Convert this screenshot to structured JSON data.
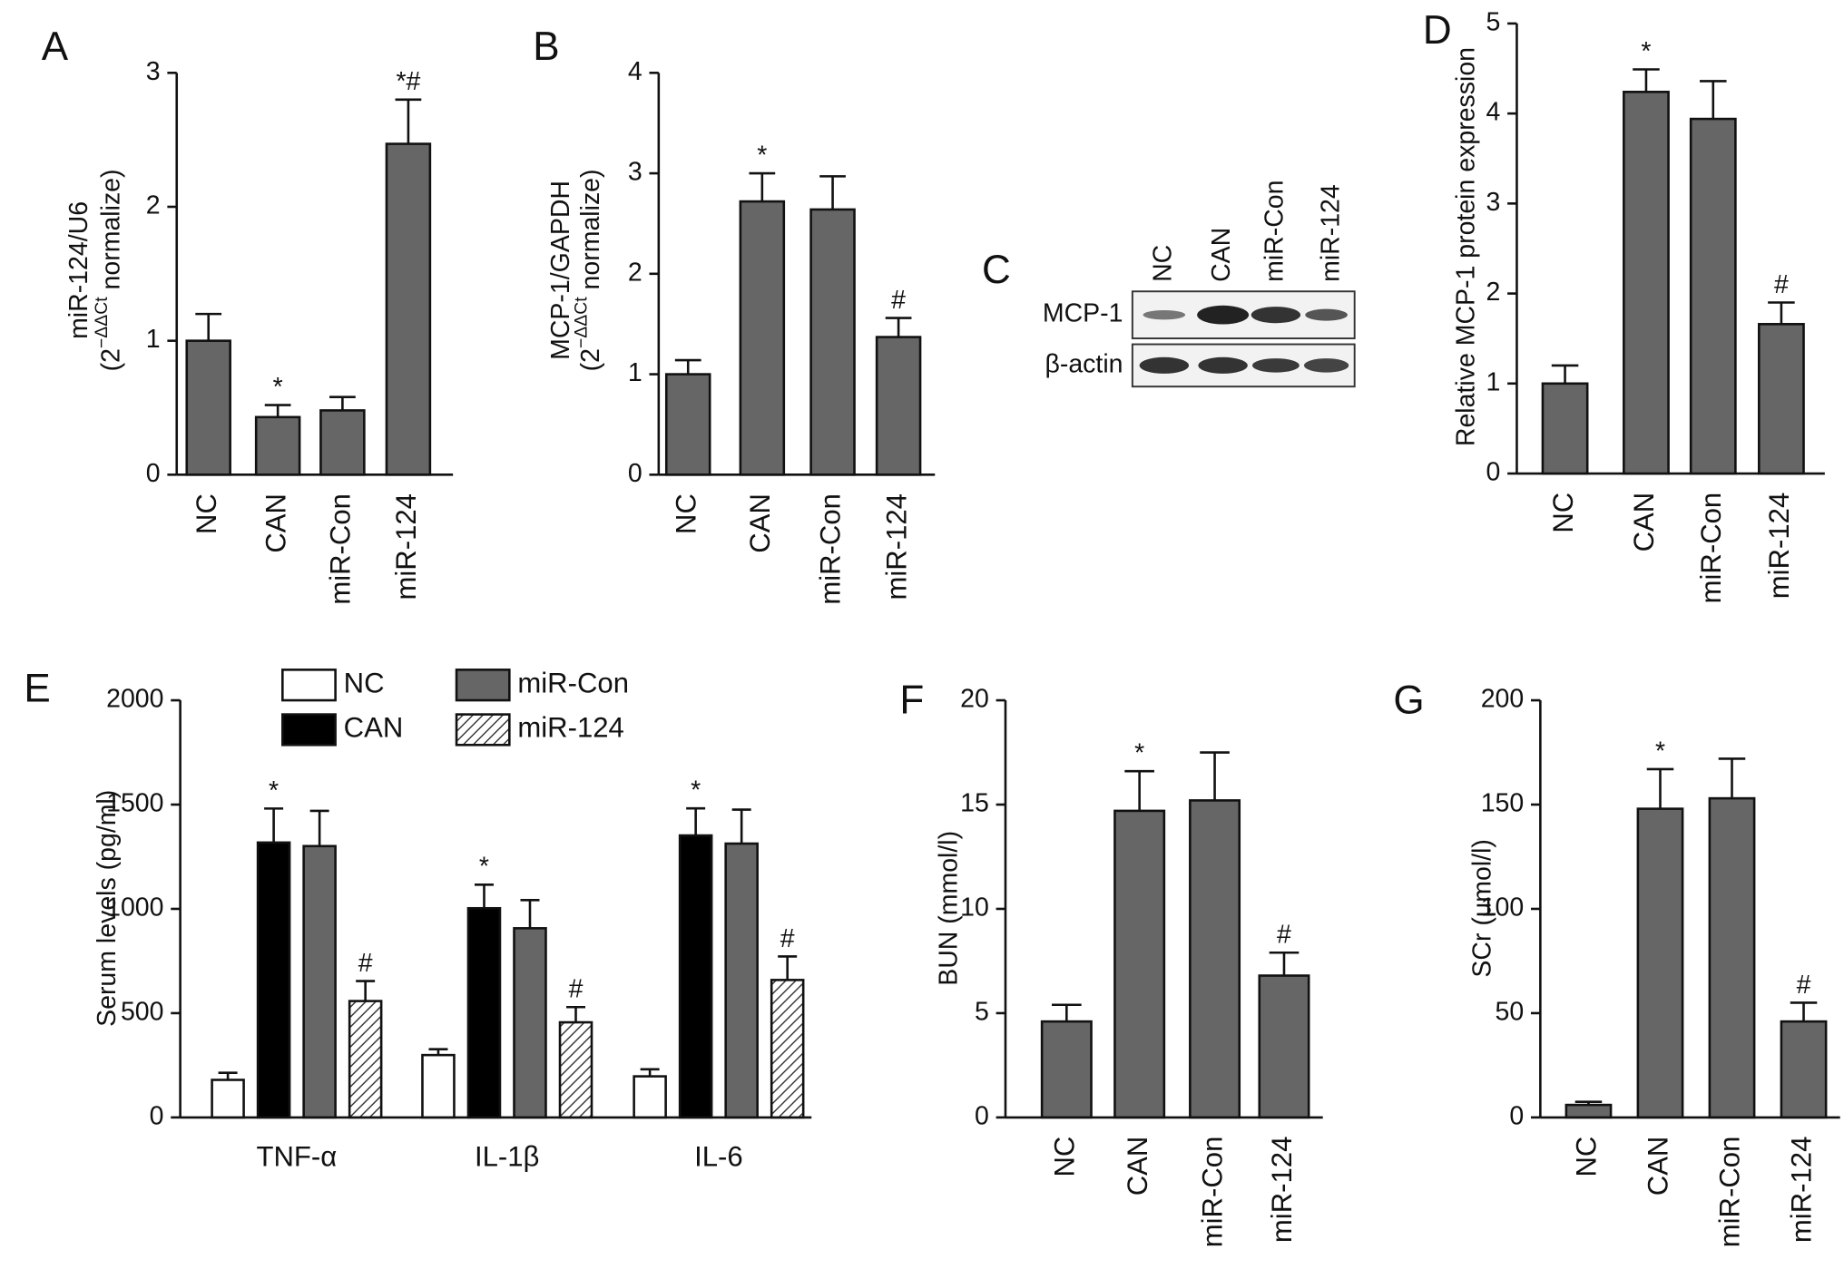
{
  "chart_data": [
    {
      "type": "bar",
      "panel_label": "A",
      "ylabel": "miR-124/U6",
      "ylabel2": {
        "base": "(2",
        "sup": "−ΔΔCt",
        "rest": " normalize)"
      },
      "categories": [
        "NC",
        "CAN",
        "miR-Con",
        "miR-124"
      ],
      "values": [
        1.0,
        0.43,
        0.48,
        2.47
      ],
      "errors": [
        0.2,
        0.09,
        0.1,
        0.33
      ],
      "annotations": [
        null,
        "*",
        null,
        "*#"
      ],
      "color": "#666666",
      "ylim": [
        0,
        3
      ],
      "yticks": [
        0,
        1,
        2,
        3
      ]
    },
    {
      "type": "bar",
      "panel_label": "B",
      "ylabel": "MCP-1/GAPDH",
      "ylabel2": {
        "base": "(2",
        "sup": "−ΔΔCt",
        "rest": " normalize)"
      },
      "categories": [
        "NC",
        "CAN",
        "miR-Con",
        "miR-124"
      ],
      "values": [
        1.0,
        2.72,
        2.64,
        1.37
      ],
      "errors": [
        0.14,
        0.28,
        0.33,
        0.19
      ],
      "annotations": [
        null,
        "*",
        null,
        "#"
      ],
      "color": "#666666",
      "ylim": [
        0,
        4
      ],
      "yticks": [
        0,
        1,
        2,
        3,
        4
      ]
    },
    {
      "type": "blot",
      "panel_label": "C",
      "lanes": [
        "NC",
        "CAN",
        "miR-Con",
        "miR-124"
      ],
      "rows": [
        "MCP-1",
        "β-actin"
      ]
    },
    {
      "type": "bar",
      "panel_label": "D",
      "ylabel": "Relative MCP-1 protein expression",
      "categories": [
        "NC",
        "CAN",
        "miR-Con",
        "miR-124"
      ],
      "values": [
        1.0,
        4.24,
        3.94,
        1.66
      ],
      "errors": [
        0.2,
        0.25,
        0.42,
        0.24
      ],
      "annotations": [
        null,
        "*",
        null,
        "#"
      ],
      "color": "#666666",
      "ylim": [
        0,
        5
      ],
      "yticks": [
        0,
        1,
        2,
        3,
        4,
        5
      ]
    },
    {
      "type": "grouped_bar",
      "panel_label": "E",
      "ylabel": "Serum levels (pg/ml)",
      "categories": [
        "TNF-α",
        "IL-1β",
        "IL-6"
      ],
      "series": [
        {
          "name": "NC",
          "color": "#ffffff",
          "values": [
            180,
            299,
            197
          ],
          "errors": [
            34,
            28,
            34
          ],
          "annotations": [
            null,
            null,
            null
          ]
        },
        {
          "name": "CAN",
          "color": "#000000",
          "values": [
            1318,
            1003,
            1352
          ],
          "errors": [
            163,
            113,
            130
          ],
          "annotations": [
            "*",
            "*",
            "*"
          ]
        },
        {
          "name": "miR-Con",
          "color": "#666666",
          "values": [
            1301,
            907,
            1313
          ],
          "errors": [
            169,
            135,
            163
          ],
          "annotations": [
            null,
            null,
            null
          ]
        },
        {
          "name": "miR-124",
          "color": "hatch",
          "values": [
            558,
            456,
            659
          ],
          "errors": [
            96,
            73,
            113
          ],
          "annotations": [
            "#",
            "#",
            "#"
          ]
        }
      ],
      "ylim": [
        0,
        2000
      ],
      "yticks": [
        0,
        500,
        1000,
        1500,
        2000
      ]
    },
    {
      "type": "bar",
      "panel_label": "F",
      "ylabel": "BUN (mmol/l)",
      "categories": [
        "NC",
        "CAN",
        "miR-Con",
        "miR-124"
      ],
      "values": [
        4.6,
        14.7,
        15.2,
        6.8
      ],
      "errors": [
        0.8,
        1.9,
        2.3,
        1.1
      ],
      "annotations": [
        null,
        "*",
        null,
        "#"
      ],
      "color": "#666666",
      "ylim": [
        0,
        20
      ],
      "yticks": [
        0,
        5,
        10,
        15,
        20
      ]
    },
    {
      "type": "bar",
      "panel_label": "G",
      "ylabel": "SCr (μmol/l)",
      "categories": [
        "NC",
        "CAN",
        "miR-Con",
        "miR-124"
      ],
      "values": [
        6,
        148,
        153,
        46
      ],
      "errors": [
        1.5,
        19,
        19,
        9
      ],
      "annotations": [
        null,
        "*",
        null,
        "#"
      ],
      "color": "#666666",
      "ylim": [
        0,
        200
      ],
      "yticks": [
        0,
        50,
        100,
        150,
        200
      ]
    }
  ]
}
